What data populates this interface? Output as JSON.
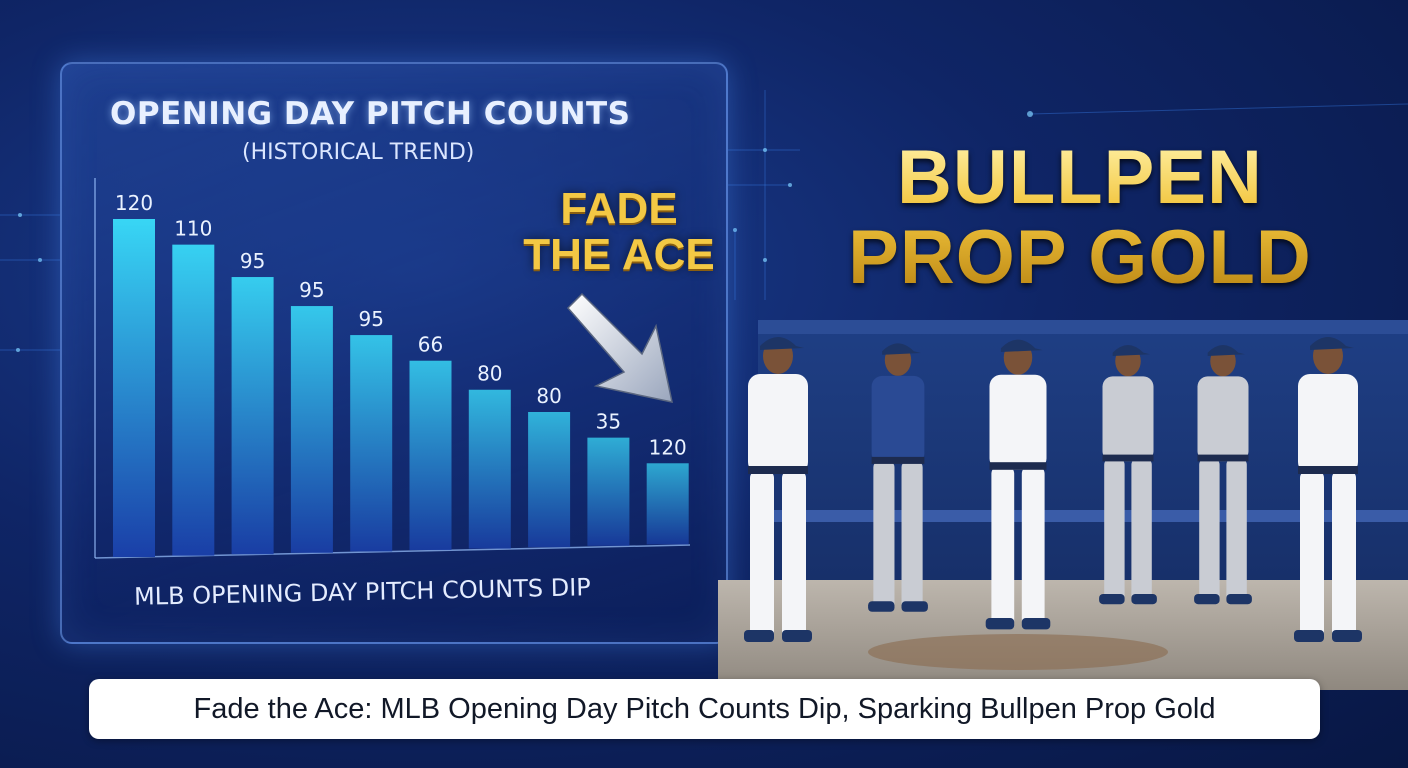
{
  "chart_data": {
    "type": "bar",
    "title": "OPENING DAY PITCH COUNTS",
    "subtitle": "(HISTORICAL TREND)",
    "categories": [
      "",
      "",
      "",
      "",
      "",
      "",
      "",
      "",
      "",
      ""
    ],
    "values": [
      120,
      110,
      95,
      95,
      95,
      66,
      80,
      80,
      35,
      120
    ],
    "value_labels": [
      "120",
      "110",
      "95",
      "95",
      "95",
      "66",
      "80",
      "80",
      "35",
      "120"
    ],
    "relative_heights": [
      1.0,
      0.92,
      0.82,
      0.73,
      0.64,
      0.56,
      0.47,
      0.4,
      0.32,
      0.24
    ],
    "caption": "MLB OPENING DAY PITCH COUNTS DIP",
    "xlabel": "",
    "ylabel": "",
    "grid": false,
    "colors": {
      "top": "#38d6f5",
      "bottom": "#1a3fa8"
    }
  },
  "callout": {
    "line1": "FADE",
    "line2": "THE ACE"
  },
  "headline": {
    "line1": "BULLPEN",
    "line2": "PROP GOLD"
  },
  "photo": {
    "description_icon": "baseball-players-photo"
  },
  "caption_bar": {
    "text": "Fade the Ace: MLB Opening Day Pitch Counts Dip, Sparking Bullpen Prop Gold"
  },
  "colors": {
    "background": "#0f2566",
    "gold": "#f3c844",
    "accent": "#38d6f5"
  }
}
